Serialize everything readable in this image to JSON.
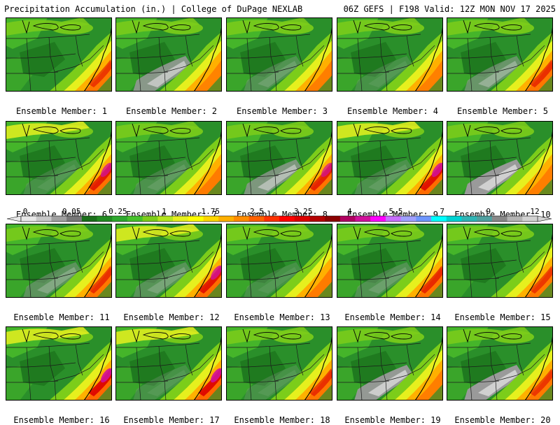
{
  "header": {
    "left": "Precipitation Accumulation (in.) | College of DuPage NEXLAB",
    "right": "06Z GEFS | F198 Valid: 12Z MON NOV 17 2025"
  },
  "map": {
    "region": "Eastern United States",
    "field": "Precipitation Accumulation (in.)",
    "members": [
      {
        "label": "Ensemble Member: 1",
        "intensity": 0.55,
        "gray": 0.0
      },
      {
        "label": "Ensemble Member: 2",
        "intensity": 0.35,
        "gray": 0.7
      },
      {
        "label": "Ensemble Member: 3",
        "intensity": 0.45,
        "gray": 0.2
      },
      {
        "label": "Ensemble Member: 4",
        "intensity": 0.4,
        "gray": 0.1
      },
      {
        "label": "Ensemble Member: 5",
        "intensity": 0.6,
        "gray": 0.4
      },
      {
        "label": "Ensemble Member: 6",
        "intensity": 0.75,
        "gray": 0.1
      },
      {
        "label": "Ensemble Member: 7",
        "intensity": 0.5,
        "gray": 0.15
      },
      {
        "label": "Ensemble Member: 8",
        "intensity": 0.7,
        "gray": 0.6
      },
      {
        "label": "Ensemble Member: 9",
        "intensity": 0.85,
        "gray": 0.15
      },
      {
        "label": "Ensemble Member: 10",
        "intensity": 0.45,
        "gray": 0.85
      },
      {
        "label": "Ensemble Member: 11",
        "intensity": 0.6,
        "gray": 0.3
      },
      {
        "label": "Ensemble Member: 12",
        "intensity": 0.8,
        "gray": 0.25
      },
      {
        "label": "Ensemble Member: 13",
        "intensity": 0.5,
        "gray": 0.1
      },
      {
        "label": "Ensemble Member: 14",
        "intensity": 0.65,
        "gray": 0.2
      },
      {
        "label": "Ensemble Member: 15",
        "intensity": 0.55,
        "gray": 0.05
      },
      {
        "label": "Ensemble Member: 16",
        "intensity": 0.9,
        "gray": 0.05
      },
      {
        "label": "Ensemble Member: 17",
        "intensity": 0.9,
        "gray": 0.1
      },
      {
        "label": "Ensemble Member: 18",
        "intensity": 0.6,
        "gray": 0.1
      },
      {
        "label": "Ensemble Member: 19",
        "intensity": 0.45,
        "gray": 0.8
      },
      {
        "label": "Ensemble Member: 20",
        "intensity": 0.55,
        "gray": 0.85
      }
    ]
  },
  "colorbar": {
    "tick_labels": [
      "0",
      "0.05",
      "0.25",
      "1",
      "1.75",
      "2.5",
      "3.25",
      "4",
      "5.5",
      "7",
      "9",
      "12"
    ],
    "colors": [
      "#e8e8e8",
      "#c8c8c8",
      "#a0a0a0",
      "#787878",
      "#1a6e1a",
      "#228b22",
      "#2ea82e",
      "#45c12a",
      "#7ccd1a",
      "#b4e61e",
      "#e6f01e",
      "#ffff00",
      "#ffd700",
      "#ffb000",
      "#ff8c00",
      "#ff6000",
      "#ff3000",
      "#ff0000",
      "#dc0000",
      "#b40000",
      "#8b0000",
      "#b00060",
      "#d0109a",
      "#ff00ff",
      "#c86eff",
      "#a0a0ff",
      "#6e96ff",
      "#00ffff",
      "#00d2d2",
      "#30b4b4",
      "#50a0a0",
      "#888888",
      "#b4b4b4",
      "#d2d2d2"
    ]
  }
}
